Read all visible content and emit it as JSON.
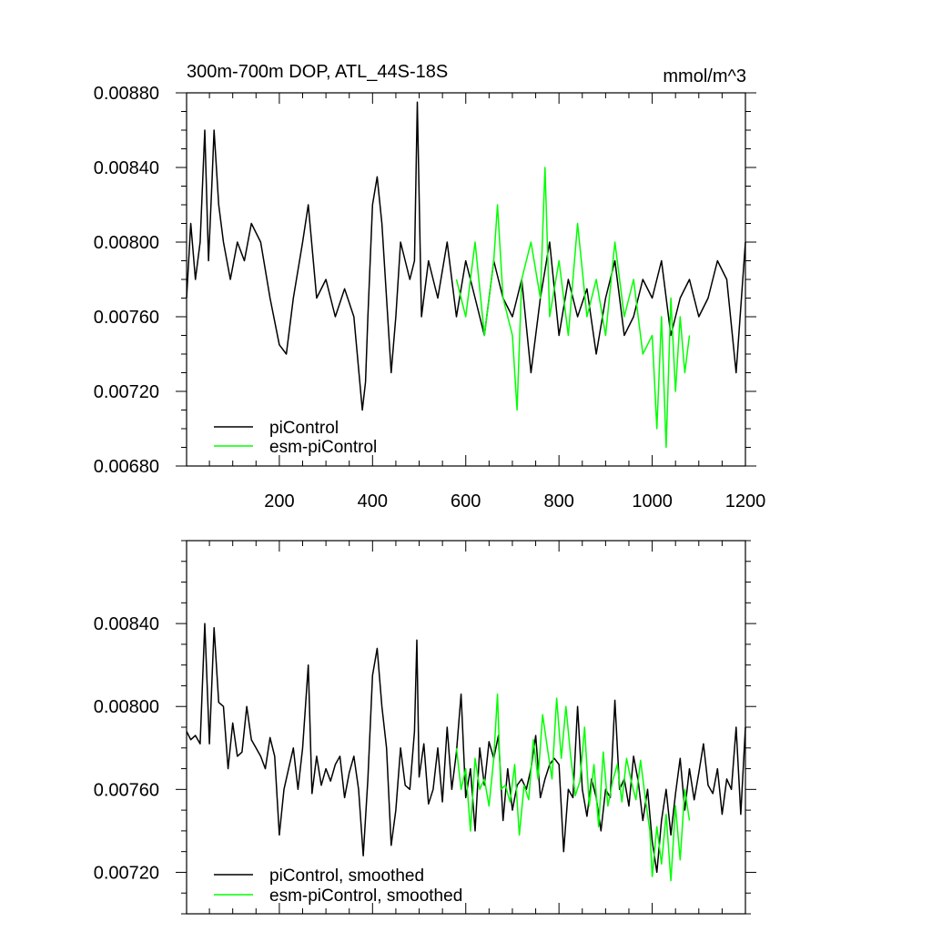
{
  "chart_data": [
    {
      "type": "line",
      "title": "300m-700m DOP, ATL_44S-18S",
      "units_label": "mmol/m^3",
      "xlabel": "",
      "ylabel": "",
      "xlim": [
        1,
        1200
      ],
      "ylim": [
        0.0068,
        0.0088
      ],
      "x_ticks": [
        200,
        400,
        600,
        800,
        1000,
        1200
      ],
      "x_tick_labels": [
        "200",
        "400",
        "600",
        "800",
        "1000",
        "1200"
      ],
      "y_ticks": [
        0.0068,
        0.0072,
        0.0076,
        0.008,
        0.0084,
        0.0088
      ],
      "y_tick_labels": [
        "0.00680",
        "0.00720",
        "0.00760",
        "0.00800",
        "0.00840",
        "0.00880"
      ],
      "legend_position": "bottom-left",
      "series": [
        {
          "name": "piControl",
          "color": "#000000",
          "x": [
            1,
            10,
            20,
            30,
            40,
            48,
            55,
            60,
            70,
            80,
            95,
            110,
            125,
            140,
            160,
            180,
            200,
            215,
            230,
            250,
            262,
            280,
            300,
            320,
            340,
            360,
            378,
            385,
            390,
            400,
            410,
            420,
            430,
            440,
            450,
            460,
            480,
            490,
            496,
            505,
            520,
            540,
            560,
            580,
            600,
            620,
            640,
            660,
            680,
            700,
            720,
            740,
            760,
            780,
            800,
            820,
            840,
            860,
            880,
            900,
            920,
            940,
            960,
            980,
            1000,
            1020,
            1040,
            1060,
            1080,
            1100,
            1120,
            1140,
            1160,
            1180,
            1200
          ],
          "values": [
            0.0077,
            0.0081,
            0.0078,
            0.008,
            0.0086,
            0.0079,
            0.0083,
            0.0086,
            0.0082,
            0.008,
            0.0078,
            0.008,
            0.0079,
            0.0081,
            0.008,
            0.0077,
            0.00745,
            0.0074,
            0.0077,
            0.008,
            0.0082,
            0.0077,
            0.0078,
            0.0076,
            0.00775,
            0.0076,
            0.0071,
            0.00725,
            0.0076,
            0.0082,
            0.00835,
            0.0081,
            0.0077,
            0.0073,
            0.0076,
            0.008,
            0.0078,
            0.0079,
            0.00875,
            0.0076,
            0.0079,
            0.0077,
            0.008,
            0.0076,
            0.0079,
            0.0077,
            0.0075,
            0.0079,
            0.0077,
            0.0076,
            0.0078,
            0.0073,
            0.0077,
            0.008,
            0.0075,
            0.0078,
            0.0076,
            0.00775,
            0.0074,
            0.0077,
            0.0079,
            0.0075,
            0.0076,
            0.0078,
            0.0077,
            0.0079,
            0.0075,
            0.0077,
            0.0078,
            0.0076,
            0.0077,
            0.0079,
            0.0078,
            0.0073,
            0.008
          ]
        },
        {
          "name": "esm-piControl",
          "color": "#00ff00",
          "x": [
            580,
            600,
            620,
            640,
            660,
            668,
            680,
            700,
            710,
            720,
            740,
            760,
            770,
            780,
            800,
            820,
            840,
            860,
            880,
            900,
            920,
            940,
            960,
            980,
            1000,
            1010,
            1020,
            1030,
            1040,
            1050,
            1060,
            1070,
            1080
          ],
          "values": [
            0.0078,
            0.0076,
            0.008,
            0.0075,
            0.0079,
            0.0082,
            0.0077,
            0.0075,
            0.0071,
            0.0078,
            0.008,
            0.0077,
            0.0084,
            0.0076,
            0.0079,
            0.0075,
            0.0081,
            0.0076,
            0.0078,
            0.0075,
            0.008,
            0.0076,
            0.0078,
            0.0074,
            0.0075,
            0.007,
            0.0076,
            0.0069,
            0.0077,
            0.0072,
            0.0076,
            0.0073,
            0.0075
          ]
        }
      ]
    },
    {
      "type": "line",
      "title": "",
      "xlabel": "",
      "ylabel": "",
      "xlim": [
        1,
        1200
      ],
      "ylim": [
        0.007,
        0.0088
      ],
      "x_ticks": [
        200,
        400,
        600,
        800,
        1000,
        1200
      ],
      "y_ticks": [
        0.0072,
        0.0076,
        0.008,
        0.0084
      ],
      "y_tick_labels": [
        "0.00720",
        "0.00760",
        "0.00800",
        "0.00840"
      ],
      "legend_position": "bottom-left",
      "series": [
        {
          "name": "piControl, smoothed",
          "color": "#000000",
          "x": [
            1,
            10,
            20,
            30,
            40,
            50,
            60,
            70,
            80,
            90,
            100,
            110,
            120,
            130,
            140,
            150,
            160,
            170,
            180,
            190,
            200,
            210,
            220,
            230,
            240,
            250,
            262,
            270,
            280,
            290,
            300,
            310,
            320,
            330,
            340,
            350,
            360,
            370,
            380,
            390,
            400,
            410,
            420,
            430,
            440,
            450,
            460,
            470,
            480,
            490,
            495,
            500,
            510,
            520,
            530,
            540,
            550,
            560,
            570,
            580,
            590,
            600,
            610,
            620,
            630,
            640,
            650,
            660,
            670,
            680,
            690,
            700,
            710,
            720,
            730,
            740,
            750,
            760,
            770,
            780,
            790,
            800,
            810,
            820,
            830,
            840,
            850,
            860,
            870,
            880,
            890,
            900,
            910,
            920,
            930,
            940,
            950,
            960,
            970,
            980,
            990,
            1000,
            1010,
            1020,
            1030,
            1040,
            1050,
            1060,
            1070,
            1080,
            1090,
            1100,
            1110,
            1120,
            1130,
            1140,
            1150,
            1160,
            1170,
            1180,
            1190,
            1200
          ],
          "values": [
            0.00788,
            0.00784,
            0.00786,
            0.00782,
            0.0084,
            0.00782,
            0.00838,
            0.00802,
            0.008,
            0.0077,
            0.00792,
            0.00776,
            0.00778,
            0.008,
            0.00784,
            0.0078,
            0.00776,
            0.0077,
            0.00785,
            0.00776,
            0.00738,
            0.0076,
            0.0077,
            0.0078,
            0.0076,
            0.0078,
            0.0082,
            0.00758,
            0.00776,
            0.00762,
            0.0077,
            0.00764,
            0.00772,
            0.00776,
            0.00756,
            0.00768,
            0.00776,
            0.0076,
            0.00728,
            0.00765,
            0.00815,
            0.00828,
            0.008,
            0.0078,
            0.00733,
            0.0075,
            0.0078,
            0.00762,
            0.0076,
            0.00788,
            0.00832,
            0.00766,
            0.00782,
            0.00753,
            0.0076,
            0.0078,
            0.00754,
            0.0079,
            0.0076,
            0.00778,
            0.00806,
            0.00756,
            0.0077,
            0.0074,
            0.0078,
            0.00762,
            0.00783,
            0.00775,
            0.00786,
            0.00745,
            0.0077,
            0.0075,
            0.00762,
            0.00765,
            0.0076,
            0.0077,
            0.00786,
            0.00756,
            0.00765,
            0.00772,
            0.00775,
            0.00772,
            0.0073,
            0.0076,
            0.00756,
            0.008,
            0.0076,
            0.00747,
            0.00765,
            0.00756,
            0.0074,
            0.0076,
            0.00756,
            0.00803,
            0.0076,
            0.00765,
            0.00752,
            0.00776,
            0.00764,
            0.00745,
            0.0076,
            0.00735,
            0.0072,
            0.00745,
            0.0076,
            0.00738,
            0.00758,
            0.00775,
            0.0075,
            0.0077,
            0.00755,
            0.00768,
            0.00782,
            0.00762,
            0.00758,
            0.0077,
            0.00748,
            0.00765,
            0.0076,
            0.0079,
            0.00748,
            0.0079
          ]
        },
        {
          "name": "esm-piControl, smoothed",
          "color": "#00ff00",
          "x": [
            580,
            590,
            600,
            610,
            620,
            630,
            640,
            650,
            660,
            668,
            675,
            685,
            695,
            705,
            715,
            725,
            735,
            745,
            755,
            765,
            775,
            785,
            795,
            805,
            815,
            825,
            835,
            845,
            855,
            865,
            875,
            885,
            895,
            905,
            915,
            925,
            935,
            945,
            955,
            965,
            975,
            985,
            995,
            1000,
            1010,
            1020,
            1030,
            1040,
            1050,
            1060,
            1070,
            1080
          ],
          "values": [
            0.0078,
            0.0076,
            0.0077,
            0.0074,
            0.00775,
            0.0076,
            0.00765,
            0.00752,
            0.00775,
            0.00806,
            0.0076,
            0.00762,
            0.00754,
            0.00772,
            0.00738,
            0.00762,
            0.00755,
            0.00784,
            0.00765,
            0.00796,
            0.0078,
            0.00765,
            0.00804,
            0.00775,
            0.008,
            0.00776,
            0.00757,
            0.00764,
            0.0079,
            0.00752,
            0.00772,
            0.00742,
            0.00778,
            0.00752,
            0.00764,
            0.00772,
            0.00754,
            0.00775,
            0.00764,
            0.00755,
            0.00774,
            0.00756,
            0.0074,
            0.00718,
            0.00742,
            0.00724,
            0.00748,
            0.00716,
            0.00752,
            0.00726,
            0.0076,
            0.00745
          ]
        }
      ]
    }
  ]
}
